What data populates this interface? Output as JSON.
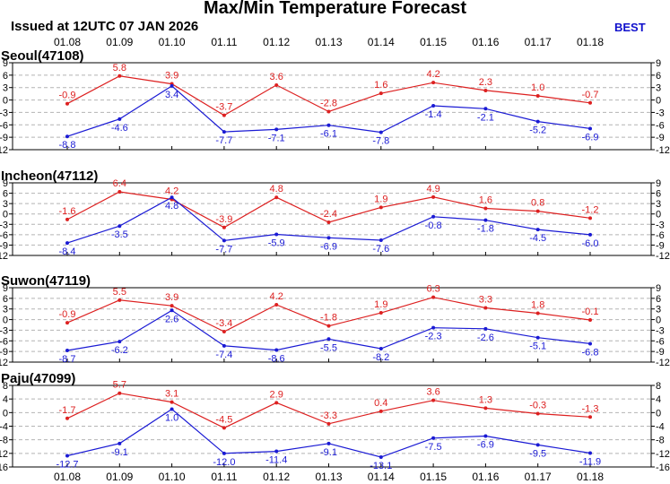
{
  "header": {
    "title": "Max/Min Temperature Forecast",
    "issued": "Issued at 12UTC 07 JAN 2026",
    "badge": "BEST"
  },
  "colors": {
    "max": "#dd2020",
    "min": "#1a1ad4",
    "grid": "#b4b4b4",
    "frame": "#000000"
  },
  "chart_data": [
    {
      "type": "line",
      "title": "Seoul(47108)",
      "categories": [
        "01.08",
        "01.09",
        "01.10",
        "01.11",
        "01.12",
        "01.13",
        "01.14",
        "01.15",
        "01.16",
        "01.17",
        "01.18"
      ],
      "series": [
        {
          "name": "max",
          "values": [
            -0.9,
            5.8,
            3.9,
            -3.7,
            3.6,
            -2.8,
            1.6,
            4.2,
            2.3,
            1.0,
            -0.7
          ]
        },
        {
          "name": "min",
          "values": [
            -8.8,
            -4.6,
            3.4,
            -7.7,
            -7.1,
            -6.1,
            -7.8,
            -1.4,
            -2.1,
            -5.2,
            -6.9
          ]
        }
      ],
      "ylim": [
        -12,
        9
      ],
      "yticks": [
        9,
        6,
        3,
        0,
        -3,
        -6,
        -9,
        -12
      ],
      "grid": true
    },
    {
      "type": "line",
      "title": "Incheon(47112)",
      "categories": [
        "01.08",
        "01.09",
        "01.10",
        "01.11",
        "01.12",
        "01.13",
        "01.14",
        "01.15",
        "01.16",
        "01.17",
        "01.18"
      ],
      "series": [
        {
          "name": "max",
          "values": [
            -1.6,
            6.4,
            4.2,
            -3.9,
            4.8,
            -2.4,
            1.9,
            4.9,
            1.6,
            0.8,
            -1.2
          ]
        },
        {
          "name": "min",
          "values": [
            -8.4,
            -3.5,
            4.8,
            -7.7,
            -5.9,
            -6.9,
            -7.6,
            -0.8,
            -1.8,
            -4.5,
            -6.0
          ]
        }
      ],
      "ylim": [
        -12,
        9
      ],
      "yticks": [
        9,
        6,
        3,
        0,
        -3,
        -6,
        -9,
        -12
      ],
      "grid": true
    },
    {
      "type": "line",
      "title": "Suwon(47119)",
      "categories": [
        "01.08",
        "01.09",
        "01.10",
        "01.11",
        "01.12",
        "01.13",
        "01.14",
        "01.15",
        "01.16",
        "01.17",
        "01.18"
      ],
      "series": [
        {
          "name": "max",
          "values": [
            -0.9,
            5.5,
            3.9,
            -3.4,
            4.2,
            -1.8,
            1.9,
            6.3,
            3.3,
            1.8,
            -0.1
          ]
        },
        {
          "name": "min",
          "values": [
            -8.7,
            -6.2,
            2.6,
            -7.4,
            -8.6,
            -5.5,
            -8.2,
            -2.3,
            -2.6,
            -5.1,
            -6.8
          ]
        }
      ],
      "ylim": [
        -12,
        9
      ],
      "yticks": [
        9,
        6,
        3,
        0,
        -3,
        -6,
        -9,
        -12
      ],
      "grid": true
    },
    {
      "type": "line",
      "title": "Paju(47099)",
      "categories": [
        "01.08",
        "01.09",
        "01.10",
        "01.11",
        "01.12",
        "01.13",
        "01.14",
        "01.15",
        "01.16",
        "01.17",
        "01.18"
      ],
      "series": [
        {
          "name": "max",
          "values": [
            -1.7,
            5.7,
            3.1,
            -4.5,
            2.9,
            -3.3,
            0.4,
            3.6,
            1.3,
            -0.3,
            -1.3
          ]
        },
        {
          "name": "min",
          "values": [
            -12.7,
            -9.1,
            1.0,
            -12.0,
            -11.4,
            -9.1,
            -13.1,
            -7.5,
            -6.9,
            -9.5,
            -11.9
          ]
        }
      ],
      "ylim": [
        -16,
        8
      ],
      "yticks": [
        8,
        4,
        0,
        -4,
        -8,
        -12,
        -16
      ],
      "grid": true
    }
  ]
}
